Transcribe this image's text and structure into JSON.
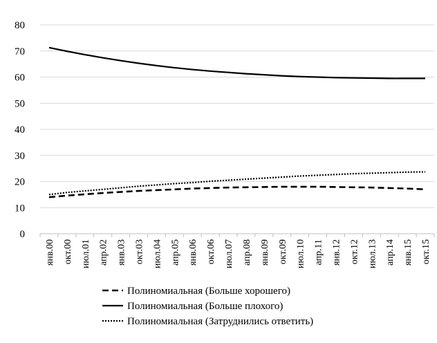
{
  "chart_data": {
    "type": "line",
    "title": "",
    "xlabel": "",
    "ylabel": "",
    "ylim": [
      0,
      80
    ],
    "yticks": [
      0,
      10,
      20,
      30,
      40,
      50,
      60,
      70,
      80
    ],
    "grid": true,
    "legend_position": "bottom",
    "categories": [
      "янв.00",
      "окт.00",
      "июл.01",
      "апр.02",
      "янв.03",
      "окт.03",
      "июл.04",
      "апр.05",
      "янв.06",
      "окт.06",
      "июл.07",
      "апр.08",
      "янв.09",
      "окт.09",
      "июл.10",
      "апр.11",
      "янв.12",
      "окт.12",
      "июл.13",
      "апр.14",
      "янв.15",
      "окт.15"
    ],
    "series": [
      {
        "name": "Полиномиальная (Больше хорошего)",
        "style": "dashed",
        "color": "#000000",
        "values": [
          14.0,
          14.6,
          15.1,
          15.6,
          16.0,
          16.4,
          16.7,
          17.0,
          17.3,
          17.5,
          17.7,
          17.8,
          17.9,
          18.0,
          18.0,
          18.0,
          17.9,
          17.8,
          17.7,
          17.5,
          17.3,
          17.0
        ]
      },
      {
        "name": "Полиномиальная (Больше плохого)",
        "style": "solid",
        "color": "#000000",
        "values": [
          71.3,
          69.9,
          68.6,
          67.4,
          66.3,
          65.3,
          64.4,
          63.6,
          62.9,
          62.3,
          61.8,
          61.3,
          60.9,
          60.5,
          60.2,
          60.0,
          59.8,
          59.7,
          59.6,
          59.5,
          59.5,
          59.5
        ]
      },
      {
        "name": "Полиномиальная (Затруднились ответить)",
        "style": "dotted",
        "color": "#000000",
        "values": [
          15.0,
          15.8,
          16.4,
          17.0,
          17.6,
          18.2,
          18.7,
          19.2,
          19.6,
          20.1,
          20.5,
          20.9,
          21.3,
          21.7,
          22.1,
          22.4,
          22.7,
          23.0,
          23.2,
          23.4,
          23.6,
          23.7
        ]
      }
    ]
  }
}
